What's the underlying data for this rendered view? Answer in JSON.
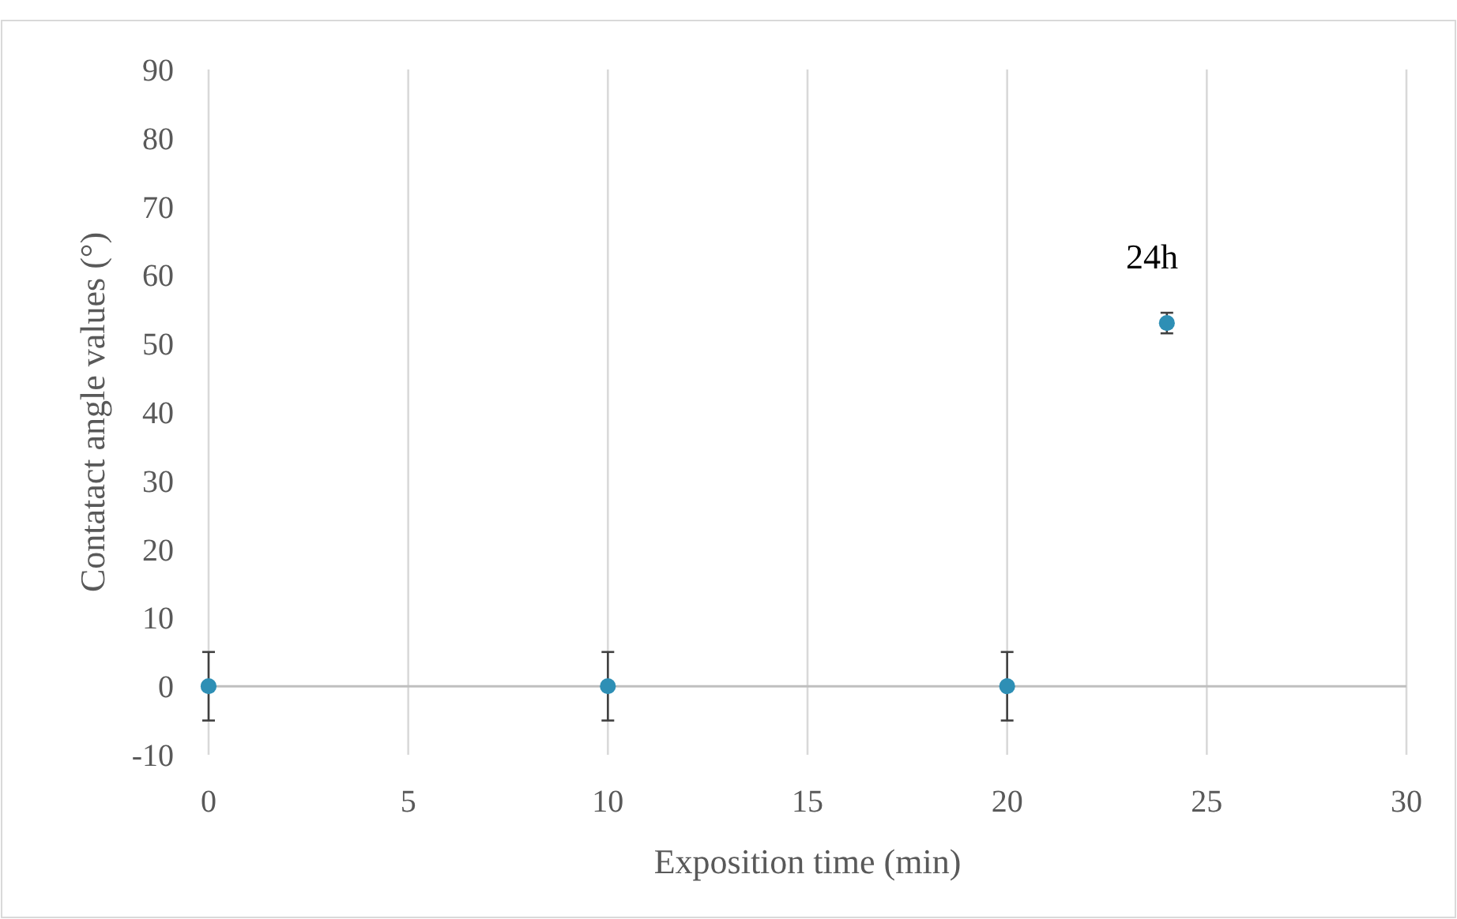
{
  "chart_data": {
    "type": "scatter",
    "xlabel": "Exposition time (min)",
    "ylabel": "Contatact angle values (°)",
    "x": [
      0,
      10,
      20,
      24
    ],
    "series": [
      {
        "color": "#2e8fb5",
        "values": [
          0,
          0,
          0,
          53
        ],
        "errors": [
          5,
          5,
          5,
          1.5
        ]
      }
    ],
    "xlim": [
      0,
      30
    ],
    "xticks": [
      0,
      5,
      10,
      15,
      20,
      25,
      30
    ],
    "ylim": [
      -10,
      90
    ],
    "yticks": [
      -10,
      0,
      10,
      20,
      30,
      40,
      50,
      60,
      70,
      80,
      90
    ],
    "grid": "x",
    "marker": "circle",
    "annotations": [
      "24h"
    ]
  }
}
